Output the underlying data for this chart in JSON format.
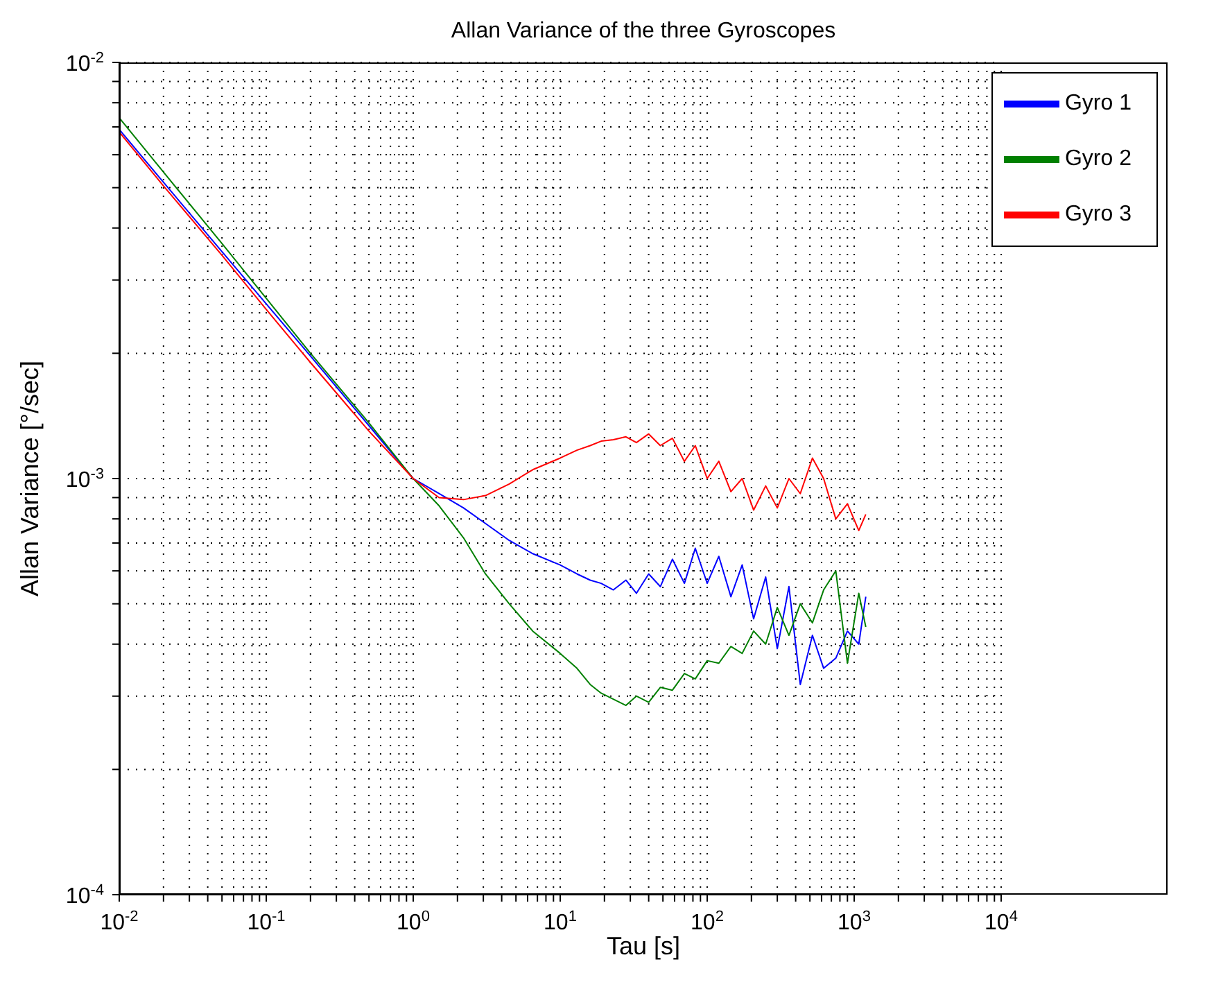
{
  "chart_data": {
    "type": "line",
    "title": "Allan Variance of the three Gyroscopes",
    "xlabel": "Tau [s]",
    "ylabel": "Allan Variance [°/sec]",
    "log": "xy",
    "grid": true,
    "legend": "top right",
    "xlim": [
      0.01,
      10000
    ],
    "ylim": [
      0.0001,
      0.01
    ],
    "xticks": [
      {
        "value": 0.01,
        "label": "10$^{-2}$"
      },
      {
        "value": 0.02,
        "label": null
      },
      {
        "value": 0.03,
        "label": null
      },
      {
        "value": 0.04,
        "label": null
      },
      {
        "value": 0.05,
        "label": null
      },
      {
        "value": 0.06,
        "label": null
      },
      {
        "value": 0.07,
        "label": null
      },
      {
        "value": 0.08,
        "label": null
      },
      {
        "value": 0.09,
        "label": null
      },
      {
        "value": 0.1,
        "label": "10$^{-1}$"
      },
      {
        "value": 0.2,
        "label": null
      },
      {
        "value": 0.3,
        "label": null
      },
      {
        "value": 0.4,
        "label": null
      },
      {
        "value": 0.5,
        "label": null
      },
      {
        "value": 0.6,
        "label": null
      },
      {
        "value": 0.7,
        "label": null
      },
      {
        "value": 0.8,
        "label": null
      },
      {
        "value": 0.9,
        "label": null
      },
      {
        "value": 1,
        "label": "10$^{0}$"
      },
      {
        "value": 2,
        "label": null
      },
      {
        "value": 3,
        "label": null
      },
      {
        "value": 4,
        "label": null
      },
      {
        "value": 5,
        "label": null
      },
      {
        "value": 6,
        "label": null
      },
      {
        "value": 7,
        "label": null
      },
      {
        "value": 8,
        "label": null
      },
      {
        "value": 9,
        "label": null
      },
      {
        "value": 10,
        "label": "10$^{1}$"
      },
      {
        "value": 20,
        "label": null
      },
      {
        "value": 30,
        "label": null
      },
      {
        "value": 40,
        "label": null
      },
      {
        "value": 50,
        "label": null
      },
      {
        "value": 60,
        "label": null
      },
      {
        "value": 70,
        "label": null
      },
      {
        "value": 80,
        "label": null
      },
      {
        "value": 90,
        "label": null
      },
      {
        "value": 100,
        "label": "10$^{2}$"
      },
      {
        "value": 200,
        "label": null
      },
      {
        "value": 300,
        "label": null
      },
      {
        "value": 400,
        "label": null
      },
      {
        "value": 500,
        "label": null
      },
      {
        "value": 600,
        "label": null
      },
      {
        "value": 700,
        "label": null
      },
      {
        "value": 800,
        "label": null
      },
      {
        "value": 900,
        "label": null
      },
      {
        "value": 1000,
        "label": "10$^{3}$"
      },
      {
        "value": 2000,
        "label": null
      },
      {
        "value": 3000,
        "label": null
      },
      {
        "value": 4000,
        "label": null
      },
      {
        "value": 5000,
        "label": null
      },
      {
        "value": 6000,
        "label": null
      },
      {
        "value": 7000,
        "label": null
      },
      {
        "value": 8000,
        "label": null
      },
      {
        "value": 9000,
        "label": null
      },
      {
        "value": 10000,
        "label": "10$^{4}$"
      }
    ],
    "yticks": [
      {
        "value": 0.0001,
        "label": "10$^{-4}$"
      },
      {
        "value": 0.0002,
        "label": null
      },
      {
        "value": 0.0003,
        "label": null
      },
      {
        "value": 0.0004,
        "label": null
      },
      {
        "value": 0.0005,
        "label": null
      },
      {
        "value": 0.0006,
        "label": null
      },
      {
        "value": 0.0007,
        "label": null
      },
      {
        "value": 0.0008,
        "label": null
      },
      {
        "value": 0.0009,
        "label": null
      },
      {
        "value": 0.001,
        "label": "10$^{-3}$"
      },
      {
        "value": 0.002,
        "label": null
      },
      {
        "value": 0.003,
        "label": null
      },
      {
        "value": 0.004,
        "label": null
      },
      {
        "value": 0.005,
        "label": null
      },
      {
        "value": 0.006,
        "label": null
      },
      {
        "value": 0.007,
        "label": null
      },
      {
        "value": 0.008,
        "label": null
      },
      {
        "value": 0.009,
        "label": null
      },
      {
        "value": 0.01,
        "label": "10$^{-2}$"
      }
    ],
    "x": [
      0.01,
      0.02,
      0.05,
      0.1,
      0.2,
      0.5,
      1,
      1.5,
      2.2,
      3.1,
      4.5,
      6.5,
      10,
      13,
      16,
      19,
      23,
      28,
      33,
      40,
      48,
      58,
      70,
      83,
      100,
      120,
      145,
      173,
      207,
      250,
      300,
      360,
      430,
      520,
      620,
      750,
      900,
      1075,
      1200
    ],
    "series": [
      {
        "name": "Gyro 1",
        "color": "#0000ff",
        "values": [
          0.0069,
          0.00515,
          0.00351,
          0.00263,
          0.00197,
          0.00134,
          0.001,
          0.00092,
          0.00085,
          0.00078,
          0.00071,
          0.00066,
          0.00062,
          0.00059,
          0.00057,
          0.00056,
          0.00054,
          0.00057,
          0.00053,
          0.00059,
          0.00055,
          0.00064,
          0.00056,
          0.00068,
          0.00056,
          0.00065,
          0.00052,
          0.00062,
          0.00046,
          0.00058,
          0.00039,
          0.00055,
          0.00032,
          0.00042,
          0.00035,
          0.00037,
          0.00043,
          0.0004,
          0.00052
        ]
      },
      {
        "name": "Gyro 2",
        "color": "#008000",
        "values": [
          0.00736,
          0.00545,
          0.00367,
          0.00271,
          0.002,
          0.00136,
          0.001,
          0.00086,
          0.00072,
          0.00059,
          0.0005,
          0.00043,
          0.00038,
          0.00035,
          0.00032,
          0.000305,
          0.000295,
          0.000285,
          0.0003,
          0.00029,
          0.000315,
          0.00031,
          0.00034,
          0.00033,
          0.000365,
          0.00036,
          0.000395,
          0.00038,
          0.00043,
          0.0004,
          0.00049,
          0.00042,
          0.0005,
          0.00045,
          0.00054,
          0.0006,
          0.00036,
          0.00053,
          0.00044
        ]
      },
      {
        "name": "Gyro 3",
        "color": "#ff0000",
        "values": [
          0.0068,
          0.00505,
          0.00344,
          0.00255,
          0.0019,
          0.0013,
          0.001,
          0.0009,
          0.00089,
          0.00091,
          0.00097,
          0.00105,
          0.00112,
          0.00117,
          0.0012,
          0.00123,
          0.00124,
          0.00126,
          0.00122,
          0.00128,
          0.0012,
          0.00125,
          0.0011,
          0.0012,
          0.001,
          0.0011,
          0.00093,
          0.001,
          0.00084,
          0.00096,
          0.00085,
          0.001,
          0.00092,
          0.00112,
          0.001,
          0.0008,
          0.00087,
          0.00075,
          0.00082
        ]
      }
    ]
  }
}
